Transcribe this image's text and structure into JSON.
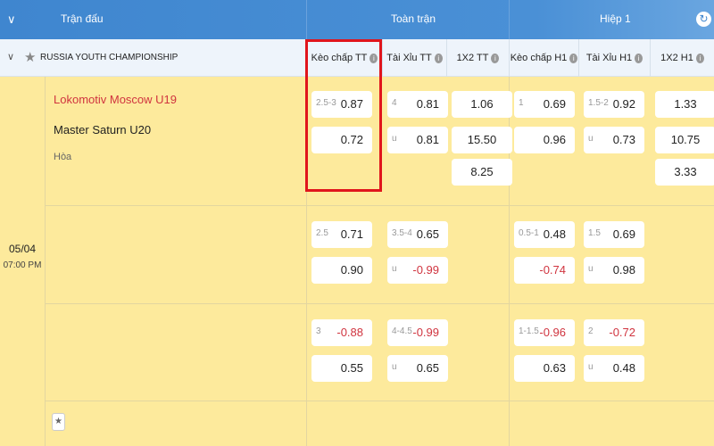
{
  "header": {
    "match_col": "Trận đấu",
    "full_time": "Toàn trận",
    "half1": "Hiệp 1",
    "collapse_icon": "chevron-down-icon",
    "refresh_icon": "refresh-icon"
  },
  "league": {
    "name": "RUSSIA YOUTH CHAMPIONSHIP",
    "columns": [
      "Kèo chấp TT",
      "Tài Xỉu TT",
      "1X2 TT",
      "Kèo chấp H1",
      "Tài Xỉu H1",
      "1X2 H1"
    ]
  },
  "match": {
    "home": "Lokomotiv Moscow U19",
    "away": "Master Saturn U20",
    "draw": "Hòa",
    "date": "05/04",
    "time": "07:00 PM",
    "home_color": "#d0343f"
  },
  "colors": {
    "header": "#4a90d6",
    "body": "#fdea9c",
    "negative": "#d0343f",
    "highlight": "#e0151c"
  },
  "rows": [
    [
      [
        {
          "l": "2.5-3",
          "v": "0.87"
        },
        {
          "l": "",
          "v": "0.72"
        }
      ],
      [
        {
          "l": "4",
          "v": "0.81"
        },
        {
          "l": "u",
          "v": "0.81"
        }
      ],
      [
        {
          "l": "",
          "v": "1.06"
        },
        {
          "l": "",
          "v": "15.50"
        },
        {
          "l": "",
          "v": "8.25"
        }
      ],
      [
        {
          "l": "1",
          "v": "0.69"
        },
        {
          "l": "",
          "v": "0.96"
        }
      ],
      [
        {
          "l": "1.5-2",
          "v": "0.92"
        },
        {
          "l": "u",
          "v": "0.73"
        }
      ],
      [
        {
          "l": "",
          "v": "1.33"
        },
        {
          "l": "",
          "v": "10.75"
        },
        {
          "l": "",
          "v": "3.33"
        }
      ]
    ],
    [
      [
        {
          "l": "2.5",
          "v": "0.71"
        },
        {
          "l": "",
          "v": "0.90"
        }
      ],
      [
        {
          "l": "3.5-4",
          "v": "0.65"
        },
        {
          "l": "u",
          "v": "-0.99"
        }
      ],
      [],
      [
        {
          "l": "0.5-1",
          "v": "0.48"
        },
        {
          "l": "",
          "v": "-0.74"
        }
      ],
      [
        {
          "l": "1.5",
          "v": "0.69"
        },
        {
          "l": "u",
          "v": "0.98"
        }
      ],
      []
    ],
    [
      [
        {
          "l": "3",
          "v": "-0.88"
        },
        {
          "l": "",
          "v": "0.55"
        }
      ],
      [
        {
          "l": "4-4.5",
          "v": "-0.99"
        },
        {
          "l": "u",
          "v": "0.65"
        }
      ],
      [],
      [
        {
          "l": "1-1.5",
          "v": "-0.96"
        },
        {
          "l": "",
          "v": "0.63"
        }
      ],
      [
        {
          "l": "2",
          "v": "-0.72"
        },
        {
          "l": "u",
          "v": "0.48"
        }
      ],
      []
    ]
  ]
}
